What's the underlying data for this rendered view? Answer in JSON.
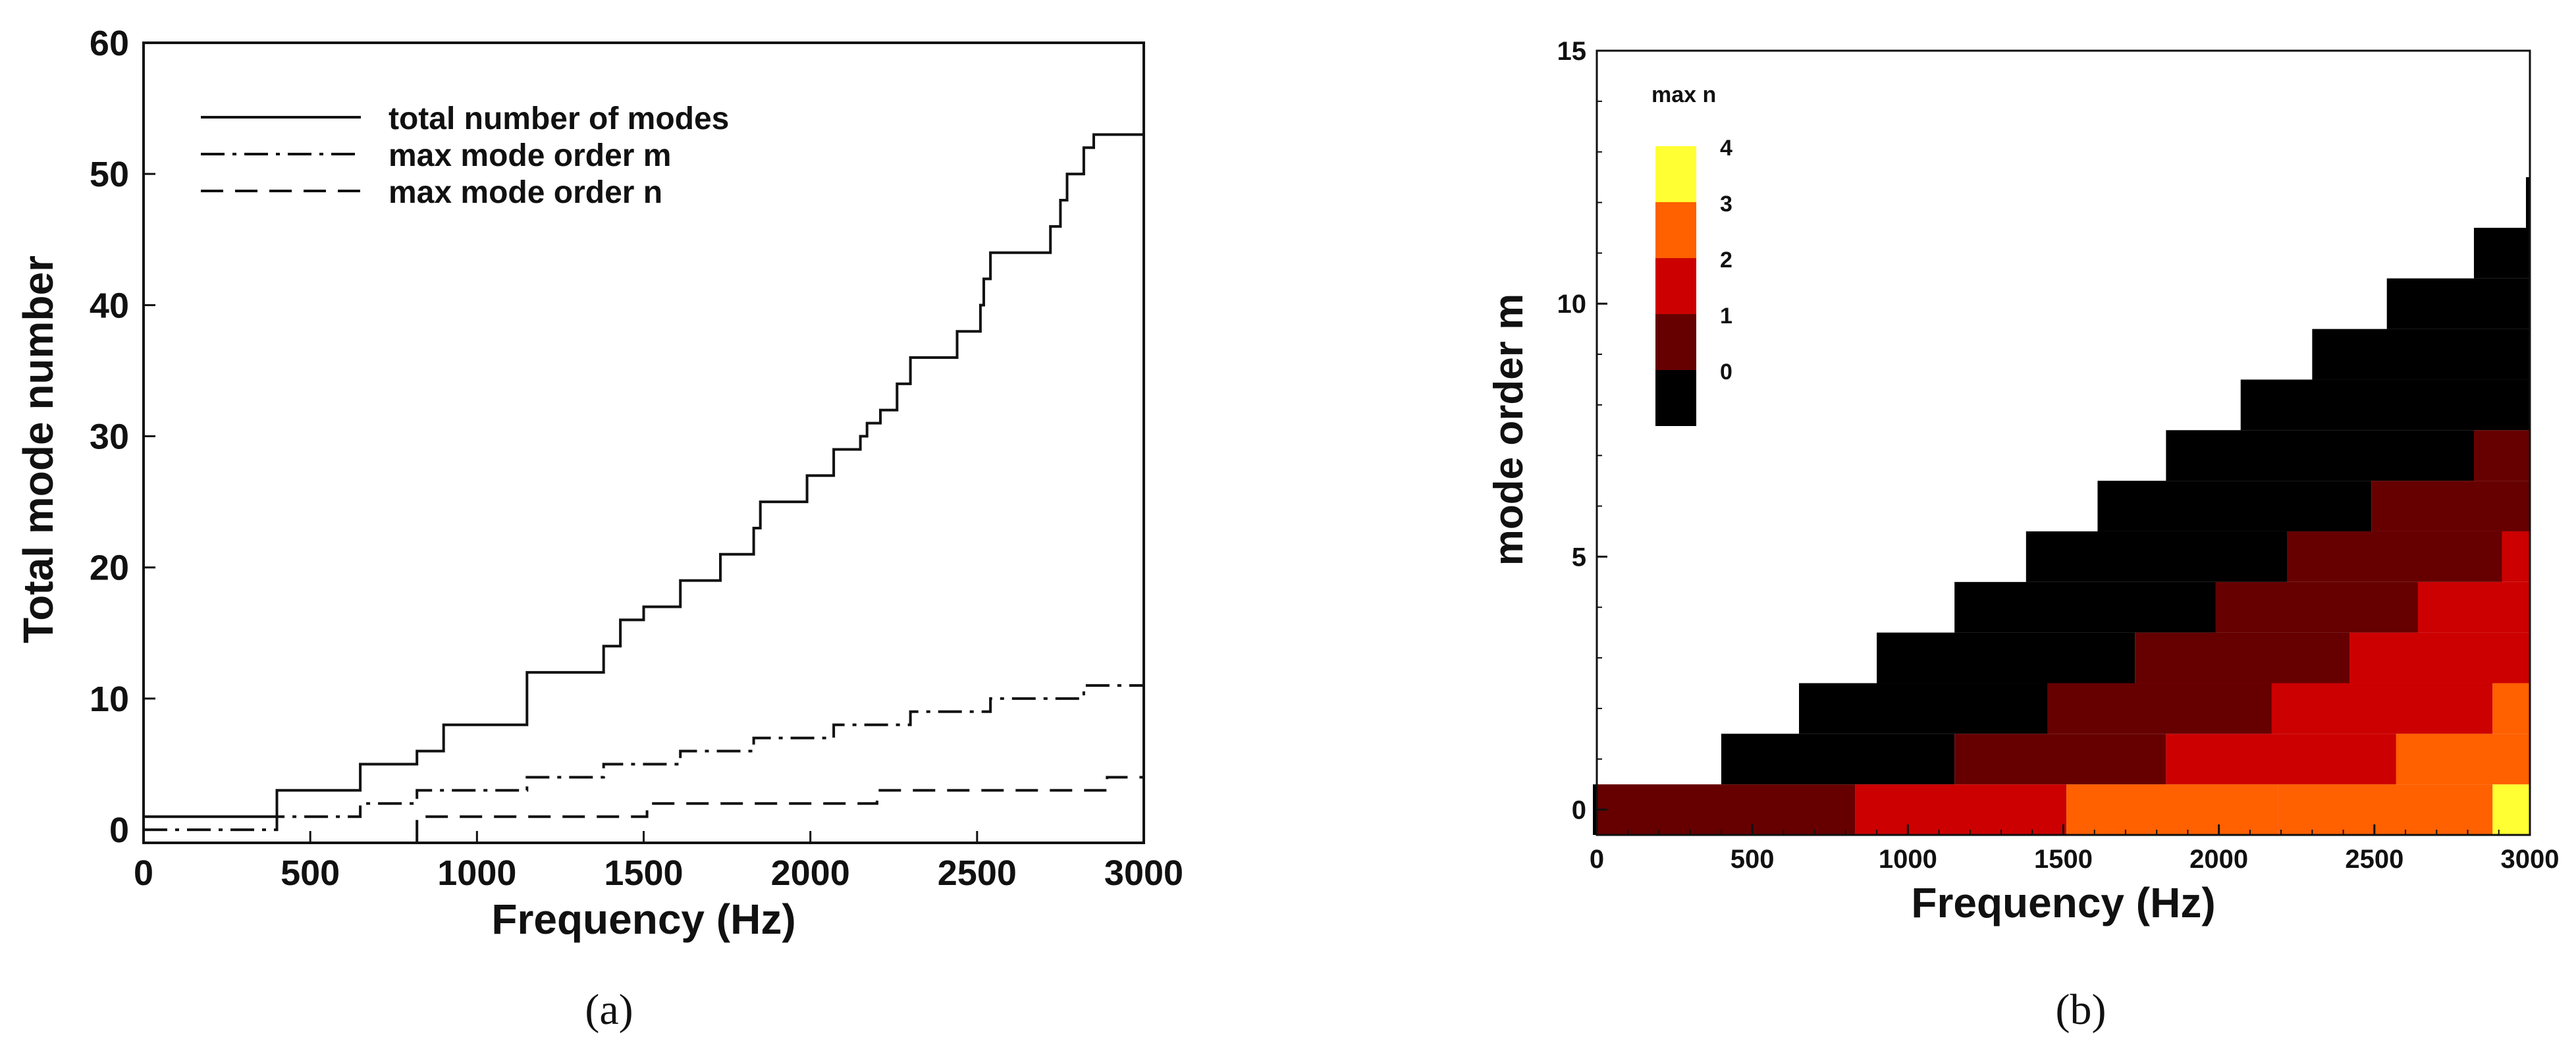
{
  "captions": {
    "a": "(a)",
    "b": "(b)"
  },
  "chart_data": [
    {
      "type": "line",
      "xlabel": "Frequency (Hz)",
      "ylabel": "Total mode number",
      "xlim": [
        0,
        3000
      ],
      "ylim": [
        -1,
        60
      ],
      "xticks": [
        0,
        500,
        1000,
        1500,
        2000,
        2500,
        3000
      ],
      "yticks": [
        0,
        10,
        20,
        30,
        40,
        50,
        60
      ],
      "grid": false,
      "legend_position": "top-left",
      "series": [
        {
          "name": "total number of modes",
          "style": "solid",
          "points": [
            [
              0,
              1
            ],
            [
              400,
              1
            ],
            [
              400,
              3
            ],
            [
              650,
              3
            ],
            [
              650,
              5
            ],
            [
              820,
              5
            ],
            [
              820,
              6
            ],
            [
              900,
              6
            ],
            [
              900,
              8
            ],
            [
              1150,
              8
            ],
            [
              1150,
              12
            ],
            [
              1380,
              12
            ],
            [
              1380,
              14
            ],
            [
              1430,
              14
            ],
            [
              1430,
              16
            ],
            [
              1500,
              16
            ],
            [
              1500,
              17
            ],
            [
              1610,
              17
            ],
            [
              1610,
              19
            ],
            [
              1730,
              19
            ],
            [
              1730,
              21
            ],
            [
              1830,
              21
            ],
            [
              1830,
              23
            ],
            [
              1850,
              23
            ],
            [
              1850,
              25
            ],
            [
              1990,
              25
            ],
            [
              1990,
              27
            ],
            [
              2070,
              27
            ],
            [
              2070,
              29
            ],
            [
              2150,
              29
            ],
            [
              2150,
              30
            ],
            [
              2170,
              30
            ],
            [
              2170,
              31
            ],
            [
              2210,
              31
            ],
            [
              2210,
              32
            ],
            [
              2260,
              32
            ],
            [
              2260,
              34
            ],
            [
              2300,
              34
            ],
            [
              2300,
              36
            ],
            [
              2440,
              36
            ],
            [
              2440,
              38
            ],
            [
              2510,
              38
            ],
            [
              2510,
              40
            ],
            [
              2520,
              40
            ],
            [
              2520,
              42
            ],
            [
              2540,
              42
            ],
            [
              2540,
              44
            ],
            [
              2720,
              44
            ],
            [
              2720,
              46
            ],
            [
              2750,
              46
            ],
            [
              2750,
              48
            ],
            [
              2770,
              48
            ],
            [
              2770,
              50
            ],
            [
              2820,
              50
            ],
            [
              2820,
              52
            ],
            [
              2850,
              52
            ],
            [
              2850,
              53
            ],
            [
              3000,
              53
            ],
            [
              3000,
              55
            ]
          ]
        },
        {
          "name": "max mode order m",
          "style": "dashdot",
          "points": [
            [
              0,
              0
            ],
            [
              400,
              0
            ],
            [
              400,
              1
            ],
            [
              650,
              1
            ],
            [
              650,
              2
            ],
            [
              820,
              2
            ],
            [
              820,
              3
            ],
            [
              1150,
              3
            ],
            [
              1150,
              4
            ],
            [
              1380,
              4
            ],
            [
              1380,
              5
            ],
            [
              1610,
              5
            ],
            [
              1610,
              6
            ],
            [
              1830,
              6
            ],
            [
              1830,
              7
            ],
            [
              2070,
              7
            ],
            [
              2070,
              8
            ],
            [
              2300,
              8
            ],
            [
              2300,
              9
            ],
            [
              2540,
              9
            ],
            [
              2540,
              10
            ],
            [
              2820,
              10
            ],
            [
              2820,
              11
            ],
            [
              3000,
              11
            ],
            [
              3000,
              12
            ]
          ]
        },
        {
          "name": "max mode order n",
          "style": "dashed",
          "points": [
            [
              0,
              -1
            ],
            [
              820,
              -1
            ],
            [
              820,
              1
            ],
            [
              1510,
              1
            ],
            [
              1510,
              2
            ],
            [
              2200,
              2
            ],
            [
              2200,
              3
            ],
            [
              2890,
              3
            ],
            [
              2890,
              4
            ],
            [
              3000,
              4
            ]
          ]
        }
      ]
    },
    {
      "type": "heatmap",
      "xlabel": "Frequency (Hz)",
      "ylabel": "mode order m",
      "xlim": [
        0,
        3000
      ],
      "ylim": [
        -0.5,
        15
      ],
      "xticks": [
        0,
        500,
        1000,
        1500,
        2000,
        2500,
        3000
      ],
      "yticks": [
        0,
        5,
        10,
        15
      ],
      "legend_title": "max n",
      "legend_position": "top-left",
      "levels": [
        {
          "value": 4,
          "color": "#FFFF33"
        },
        {
          "value": 3,
          "color": "#FF6000"
        },
        {
          "value": 2,
          "color": "#CC0000"
        },
        {
          "value": 1,
          "color": "#660000"
        },
        {
          "value": 0,
          "color": "#000000"
        }
      ],
      "cells": [
        [
          0,
          0,
          0,
          0
        ],
        [
          0,
          0,
          830,
          1
        ],
        [
          0,
          830,
          1510,
          2
        ],
        [
          0,
          1510,
          2190,
          3
        ],
        [
          0,
          2190,
          2880,
          3
        ],
        [
          0,
          2880,
          3000,
          4
        ],
        [
          1,
          400,
          1150,
          0
        ],
        [
          1,
          1150,
          1830,
          1
        ],
        [
          1,
          1830,
          2570,
          2
        ],
        [
          1,
          2570,
          3000,
          3
        ],
        [
          2,
          650,
          1450,
          0
        ],
        [
          2,
          1450,
          2170,
          1
        ],
        [
          2,
          2170,
          2880,
          2
        ],
        [
          2,
          2880,
          3000,
          3
        ],
        [
          3,
          900,
          1730,
          0
        ],
        [
          3,
          1730,
          2420,
          1
        ],
        [
          3,
          2420,
          3000,
          2
        ],
        [
          4,
          1150,
          1990,
          0
        ],
        [
          4,
          1990,
          2640,
          1
        ],
        [
          4,
          2640,
          3000,
          2
        ],
        [
          5,
          1380,
          2220,
          0
        ],
        [
          5,
          2220,
          2910,
          1
        ],
        [
          5,
          2910,
          3000,
          2
        ],
        [
          6,
          1610,
          2490,
          0
        ],
        [
          6,
          2490,
          3000,
          1
        ],
        [
          7,
          1830,
          2820,
          0
        ],
        [
          7,
          2820,
          3000,
          1
        ],
        [
          8,
          2070,
          3000,
          0
        ],
        [
          9,
          2300,
          3000,
          0
        ],
        [
          10,
          2540,
          3000,
          0
        ],
        [
          11,
          2820,
          3000,
          0
        ],
        [
          12,
          3000,
          3000,
          0
        ]
      ],
      "cell_top_m_last": 12
    }
  ]
}
